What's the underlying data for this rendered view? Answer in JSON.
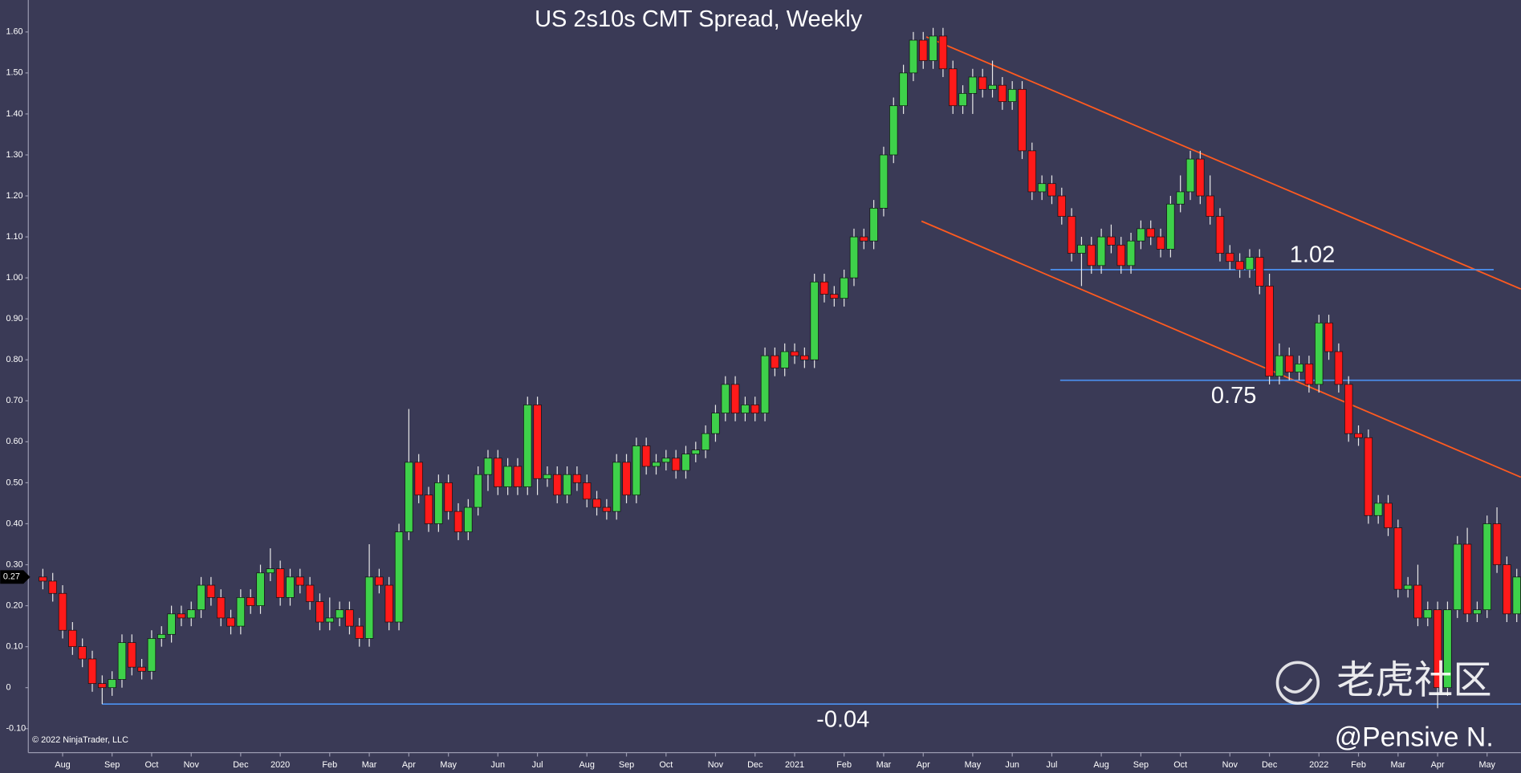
{
  "chart_data": {
    "type": "candlestick",
    "title": "US 2s10s CMT Spread, Weekly",
    "copyright": "© 2022 NinjaTrader, LLC",
    "watermark": "老虎社区",
    "author": "@Pensive N.",
    "up_color": "#3ed14a",
    "down_color": "#ff1a1a",
    "level_color": "#4a8ce8",
    "levels": [
      1.02,
      0.75,
      -0.04
    ],
    "categories": [
      null,
      null,
      "Aug",
      null,
      null,
      null,
      null,
      "Sep",
      null,
      null,
      null,
      "Oct",
      null,
      null,
      null,
      "Nov",
      null,
      null,
      null,
      null,
      "Dec",
      null,
      null,
      null,
      "2020",
      null,
      null,
      null,
      null,
      "Feb",
      null,
      null,
      null,
      "Mar",
      null,
      null,
      null,
      "Apr",
      null,
      null,
      null,
      "May",
      null,
      null,
      null,
      null,
      "Jun",
      null,
      null,
      null,
      "Jul",
      null,
      null,
      null,
      null,
      "Aug",
      null,
      null,
      null,
      "Sep",
      null,
      null,
      null,
      "Oct",
      null,
      null,
      null,
      null,
      "Nov",
      null,
      null,
      null,
      "Dec",
      null,
      null,
      null,
      "2021",
      null,
      null,
      null,
      null,
      "Feb",
      null,
      null,
      null,
      "Mar",
      null,
      null,
      null,
      "Apr",
      null,
      null,
      null,
      null,
      "May",
      null,
      null,
      null,
      "Jun",
      null,
      null,
      null,
      "Jul",
      null,
      null,
      null,
      null,
      "Aug",
      null,
      null,
      null,
      "Sep",
      null,
      null,
      null,
      "Oct",
      null,
      null,
      null,
      null,
      "Nov",
      null,
      null,
      null,
      "Dec",
      null,
      null,
      null,
      null,
      "2022",
      null,
      null,
      null,
      "Feb",
      null,
      null,
      null,
      "Mar",
      null,
      null,
      null,
      "Apr",
      null,
      null,
      null,
      null,
      "May",
      null,
      null,
      null
    ],
    "open": [
      0.27,
      0.26,
      0.23,
      0.14,
      0.1,
      0.07,
      0.01,
      0.0,
      0.02,
      0.11,
      0.05,
      0.04,
      0.12,
      0.13,
      0.18,
      0.17,
      0.19,
      0.25,
      0.22,
      0.17,
      0.15,
      0.22,
      0.2,
      0.28,
      0.29,
      0.22,
      0.27,
      0.25,
      0.21,
      0.16,
      0.17,
      0.19,
      0.15,
      0.12,
      0.27,
      0.25,
      0.16,
      0.38,
      0.55,
      0.47,
      0.4,
      0.5,
      0.43,
      0.38,
      0.44,
      0.52,
      0.56,
      0.49,
      0.54,
      0.49,
      0.69,
      0.51,
      0.52,
      0.47,
      0.52,
      0.5,
      0.46,
      0.44,
      0.43,
      0.55,
      0.47,
      0.59,
      0.54,
      0.55,
      0.56,
      0.53,
      0.57,
      0.58,
      0.62,
      0.67,
      0.74,
      0.67,
      0.69,
      0.67,
      0.81,
      0.78,
      0.82,
      0.81,
      0.8,
      0.99,
      0.96,
      0.95,
      1.0,
      1.1,
      1.09,
      1.17,
      1.3,
      1.42,
      1.5,
      1.58,
      1.53,
      1.59,
      1.51,
      1.42,
      1.45,
      1.49,
      1.46,
      1.47,
      1.43,
      1.46,
      1.31,
      1.21,
      1.23,
      1.2,
      1.15,
      1.06,
      1.08,
      1.03,
      1.1,
      1.08,
      1.03,
      1.09,
      1.12,
      1.1,
      1.07,
      1.18,
      1.21,
      1.29,
      1.2,
      1.15,
      1.06,
      1.04,
      1.02,
      1.05,
      0.98,
      0.76,
      0.81,
      0.77,
      0.79,
      0.74,
      0.89,
      0.82,
      0.74,
      0.62,
      0.61,
      0.42,
      0.45,
      0.39,
      0.24,
      0.25,
      0.17,
      0.19,
      0.0,
      0.19,
      0.35,
      0.18,
      0.19,
      0.4,
      0.3,
      0.18
    ],
    "high": [
      0.29,
      0.28,
      0.25,
      0.16,
      0.12,
      0.09,
      0.03,
      0.04,
      0.13,
      0.13,
      0.07,
      0.14,
      0.15,
      0.2,
      0.2,
      0.21,
      0.27,
      0.27,
      0.24,
      0.19,
      0.24,
      0.24,
      0.3,
      0.34,
      0.31,
      0.29,
      0.29,
      0.27,
      0.23,
      0.22,
      0.21,
      0.21,
      0.17,
      0.35,
      0.29,
      0.27,
      0.4,
      0.68,
      0.57,
      0.49,
      0.52,
      0.52,
      0.45,
      0.46,
      0.54,
      0.58,
      0.58,
      0.56,
      0.56,
      0.71,
      0.71,
      0.54,
      0.54,
      0.54,
      0.54,
      0.52,
      0.48,
      0.46,
      0.57,
      0.57,
      0.61,
      0.61,
      0.57,
      0.58,
      0.58,
      0.59,
      0.6,
      0.64,
      0.69,
      0.76,
      0.76,
      0.71,
      0.71,
      0.83,
      0.83,
      0.84,
      0.84,
      0.83,
      1.01,
      1.01,
      0.98,
      1.02,
      1.12,
      1.12,
      1.19,
      1.32,
      1.44,
      1.52,
      1.6,
      1.6,
      1.61,
      1.61,
      1.53,
      1.47,
      1.51,
      1.51,
      1.53,
      1.49,
      1.48,
      1.48,
      1.33,
      1.25,
      1.25,
      1.22,
      1.17,
      1.1,
      1.1,
      1.12,
      1.13,
      1.1,
      1.11,
      1.14,
      1.14,
      1.12,
      1.2,
      1.25,
      1.31,
      1.31,
      1.25,
      1.17,
      1.08,
      1.06,
      1.07,
      1.07,
      1.01,
      0.84,
      0.83,
      0.81,
      0.81,
      0.91,
      0.91,
      0.84,
      0.76,
      0.64,
      0.63,
      0.47,
      0.47,
      0.41,
      0.27,
      0.3,
      0.21,
      0.21,
      0.21,
      0.37,
      0.39,
      0.21,
      0.42,
      0.44,
      0.32,
      0.29
    ],
    "low": [
      0.24,
      0.21,
      0.12,
      0.08,
      0.05,
      -0.01,
      -0.04,
      -0.02,
      0.0,
      0.03,
      0.02,
      0.02,
      0.1,
      0.11,
      0.15,
      0.15,
      0.17,
      0.2,
      0.15,
      0.13,
      0.13,
      0.18,
      0.18,
      0.26,
      0.2,
      0.2,
      0.23,
      0.19,
      0.14,
      0.14,
      0.15,
      0.13,
      0.1,
      0.1,
      0.23,
      0.14,
      0.14,
      0.36,
      0.45,
      0.38,
      0.38,
      0.41,
      0.36,
      0.36,
      0.42,
      0.48,
      0.47,
      0.47,
      0.47,
      0.47,
      0.47,
      0.49,
      0.45,
      0.45,
      0.48,
      0.44,
      0.42,
      0.41,
      0.41,
      0.45,
      0.45,
      0.52,
      0.52,
      0.53,
      0.51,
      0.51,
      0.55,
      0.56,
      0.6,
      0.65,
      0.65,
      0.65,
      0.65,
      0.65,
      0.76,
      0.76,
      0.79,
      0.78,
      0.78,
      0.94,
      0.93,
      0.93,
      0.98,
      1.07,
      1.07,
      1.15,
      1.28,
      1.4,
      1.48,
      1.51,
      1.51,
      1.49,
      1.4,
      1.4,
      1.4,
      1.44,
      1.44,
      1.41,
      1.41,
      1.29,
      1.19,
      1.19,
      1.18,
      1.13,
      1.04,
      0.98,
      1.01,
      1.01,
      1.06,
      1.01,
      1.01,
      1.07,
      1.08,
      1.05,
      1.05,
      1.16,
      1.19,
      1.18,
      1.13,
      1.04,
      1.02,
      1.0,
      1.0,
      0.96,
      0.74,
      0.74,
      0.75,
      0.75,
      0.72,
      0.72,
      0.8,
      0.72,
      0.6,
      0.59,
      0.4,
      0.4,
      0.37,
      0.22,
      0.22,
      0.15,
      0.15,
      -0.05,
      -0.02,
      0.17,
      0.16,
      0.16,
      0.17,
      0.28,
      0.16,
      0.16
    ],
    "close": [
      0.26,
      0.23,
      0.14,
      0.1,
      0.07,
      0.01,
      0.0,
      0.02,
      0.11,
      0.05,
      0.04,
      0.12,
      0.13,
      0.18,
      0.17,
      0.19,
      0.25,
      0.22,
      0.17,
      0.15,
      0.22,
      0.2,
      0.28,
      0.29,
      0.22,
      0.27,
      0.25,
      0.21,
      0.16,
      0.17,
      0.19,
      0.15,
      0.12,
      0.27,
      0.25,
      0.16,
      0.38,
      0.55,
      0.47,
      0.4,
      0.5,
      0.43,
      0.38,
      0.44,
      0.52,
      0.56,
      0.49,
      0.54,
      0.49,
      0.69,
      0.51,
      0.52,
      0.47,
      0.52,
      0.5,
      0.46,
      0.44,
      0.43,
      0.55,
      0.47,
      0.59,
      0.54,
      0.55,
      0.56,
      0.53,
      0.57,
      0.58,
      0.62,
      0.67,
      0.74,
      0.67,
      0.69,
      0.67,
      0.81,
      0.78,
      0.82,
      0.81,
      0.8,
      0.99,
      0.96,
      0.95,
      1.0,
      1.1,
      1.09,
      1.17,
      1.3,
      1.42,
      1.5,
      1.58,
      1.53,
      1.59,
      1.51,
      1.42,
      1.45,
      1.49,
      1.46,
      1.47,
      1.43,
      1.46,
      1.31,
      1.21,
      1.23,
      1.2,
      1.15,
      1.06,
      1.08,
      1.03,
      1.1,
      1.08,
      1.03,
      1.09,
      1.12,
      1.1,
      1.07,
      1.18,
      1.21,
      1.29,
      1.2,
      1.15,
      1.06,
      1.04,
      1.02,
      1.05,
      0.98,
      0.76,
      0.81,
      0.77,
      0.79,
      0.74,
      0.89,
      0.82,
      0.74,
      0.62,
      0.61,
      0.42,
      0.45,
      0.39,
      0.24,
      0.25,
      0.17,
      0.19,
      0.0,
      0.19,
      0.35,
      0.18,
      0.19,
      0.4,
      0.3,
      0.18,
      0.27
    ],
    "ylim": [
      -0.155,
      1.678
    ],
    "yticks": [
      {
        "value": 1.6,
        "label": "1.60"
      },
      {
        "value": 1.5,
        "label": "1.50"
      },
      {
        "value": 1.4,
        "label": "1.40"
      },
      {
        "value": 1.3,
        "label": "1.30"
      },
      {
        "value": 1.2,
        "label": "1.20"
      },
      {
        "value": 1.1,
        "label": "1.10"
      },
      {
        "value": 1.0,
        "label": "1.00"
      },
      {
        "value": 0.9,
        "label": "0.90"
      },
      {
        "value": 0.8,
        "label": "0.80"
      },
      {
        "value": 0.7,
        "label": "0.70"
      },
      {
        "value": 0.6,
        "label": "0.60"
      },
      {
        "value": 0.5,
        "label": "0.50"
      },
      {
        "value": 0.4,
        "label": "0.40"
      },
      {
        "value": 0.3,
        "label": "0.30"
      },
      {
        "value": 0.2,
        "label": "0.20"
      },
      {
        "value": 0.1,
        "label": "0.10"
      },
      0,
      {
        "value": -0.1,
        "label": "-0.10"
      }
    ]
  }
}
